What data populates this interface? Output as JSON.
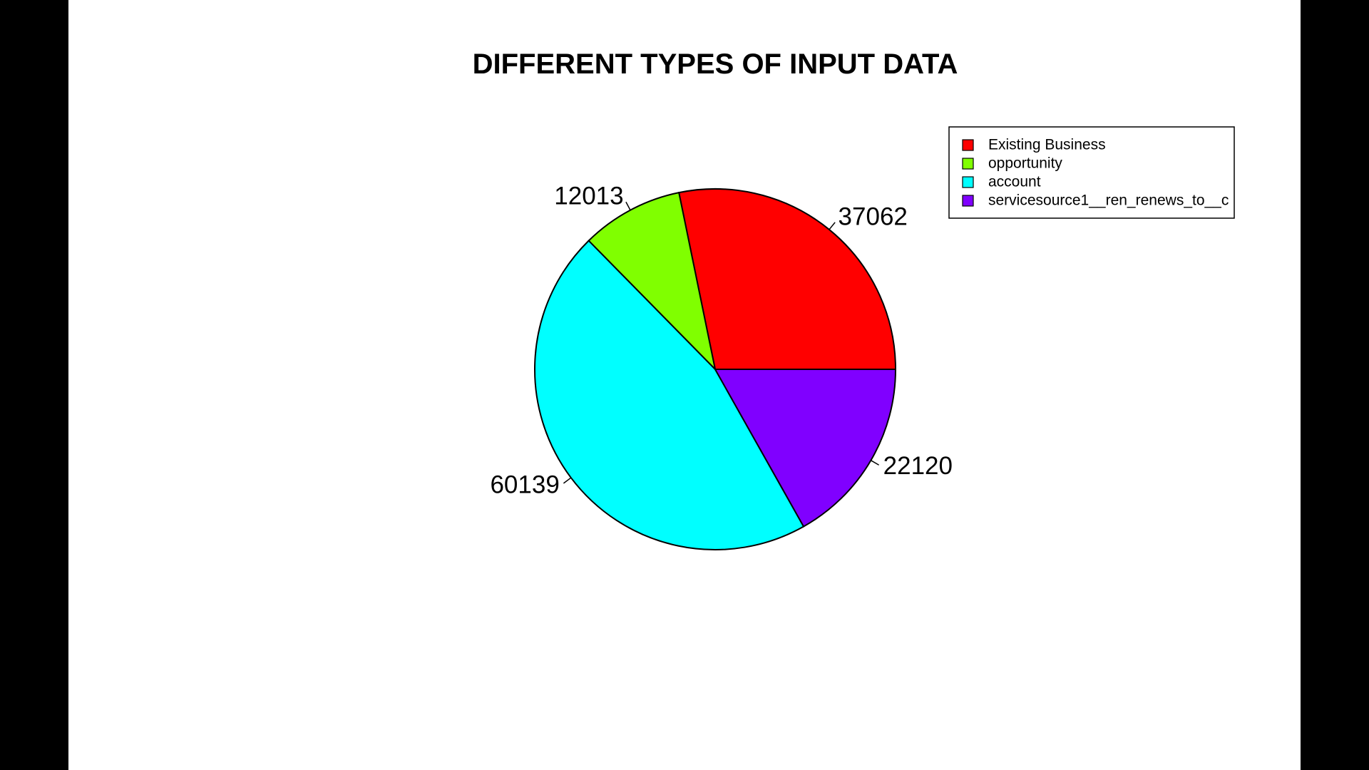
{
  "chart_data": {
    "type": "pie",
    "title": "DIFFERENT TYPES OF INPUT DATA",
    "categories": [
      "Existing Business",
      "opportunity",
      "account",
      "servicesource1__ren_renews_to__c"
    ],
    "values": [
      37062,
      12013,
      60139,
      22120
    ],
    "slice_labels": [
      "37062",
      "12013",
      "60139",
      "22120"
    ],
    "colors": [
      "#FF0000",
      "#80FF00",
      "#00FFFF",
      "#8000FF"
    ],
    "legend": {
      "position": "top-right",
      "entries": [
        "Existing Business",
        "opportunity",
        "account",
        "servicesource1__ren_renews_to__c"
      ]
    },
    "start_angle_deg": 0,
    "direction": "counterclockwise"
  }
}
